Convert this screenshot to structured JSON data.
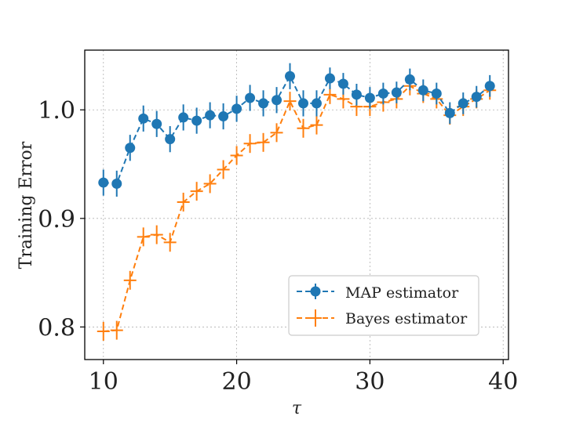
{
  "chart_data": {
    "type": "line",
    "xlabel": "τ",
    "ylabel": "Training Error",
    "xlim": [
      8.6,
      40.4
    ],
    "ylim": [
      0.77,
      1.055
    ],
    "grid": true,
    "legend_position": "bottom-right",
    "x_ticks": [
      10,
      20,
      30,
      40
    ],
    "y_ticks": [
      0.8,
      0.9,
      1.0
    ],
    "x_tick_labels": [
      "10",
      "20",
      "30",
      "40"
    ],
    "y_tick_labels": [
      "0.8",
      "0.9",
      "1.0"
    ],
    "x": [
      10,
      11,
      12,
      13,
      14,
      15,
      16,
      17,
      18,
      19,
      20,
      21,
      22,
      23,
      24,
      25,
      26,
      27,
      28,
      29,
      30,
      31,
      32,
      33,
      34,
      35,
      36,
      37,
      38,
      39
    ],
    "series": [
      {
        "name": "MAP estimator",
        "color": "#1f77b4",
        "marker": "circle",
        "values": [
          0.933,
          0.932,
          0.965,
          0.992,
          0.987,
          0.973,
          0.993,
          0.99,
          0.995,
          0.994,
          1.001,
          1.011,
          1.006,
          1.009,
          1.031,
          1.006,
          1.006,
          1.029,
          1.024,
          1.014,
          1.011,
          1.015,
          1.016,
          1.028,
          1.018,
          1.015,
          0.997,
          1.006,
          1.012,
          1.022
        ],
        "errors": [
          0.012,
          0.012,
          0.012,
          0.012,
          0.012,
          0.012,
          0.012,
          0.012,
          0.012,
          0.012,
          0.012,
          0.012,
          0.012,
          0.012,
          0.012,
          0.012,
          0.012,
          0.01,
          0.01,
          0.01,
          0.01,
          0.01,
          0.01,
          0.01,
          0.01,
          0.01,
          0.01,
          0.01,
          0.01,
          0.01
        ]
      },
      {
        "name": "Bayes estimator",
        "color": "#ff7f0e",
        "marker": "plus",
        "values": [
          0.796,
          0.797,
          0.843,
          0.883,
          0.885,
          0.878,
          0.915,
          0.925,
          0.932,
          0.945,
          0.958,
          0.969,
          0.97,
          0.979,
          1.008,
          0.983,
          0.986,
          1.014,
          1.01,
          1.003,
          1.003,
          1.007,
          1.01,
          1.022,
          1.015,
          1.01,
          0.995,
          1.003,
          1.01,
          1.018
        ]
      }
    ]
  }
}
